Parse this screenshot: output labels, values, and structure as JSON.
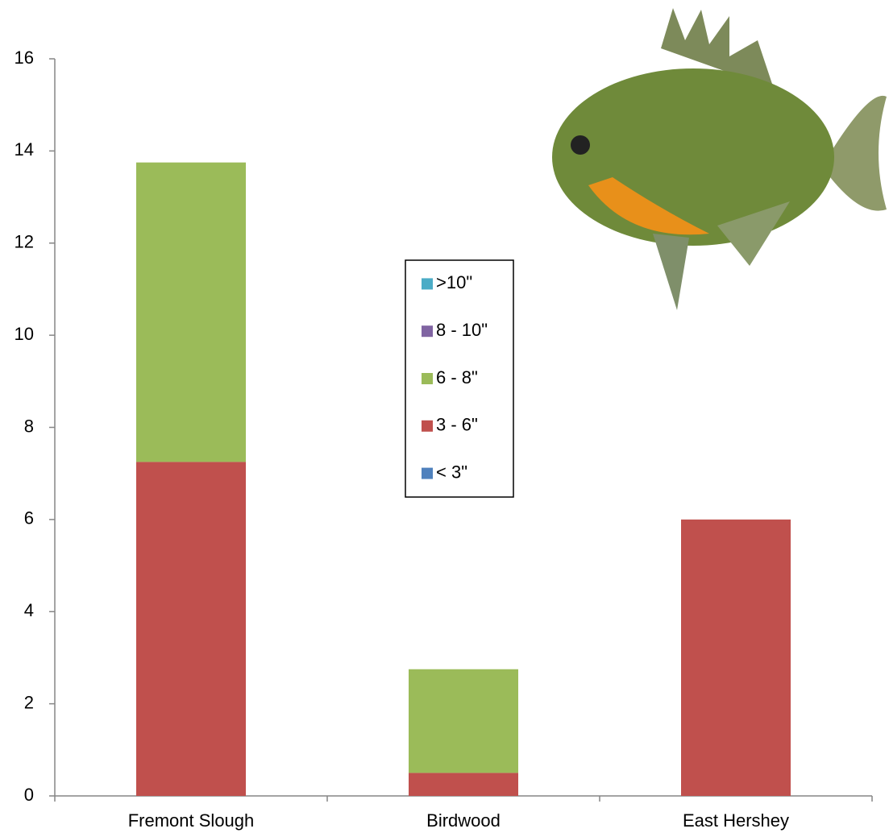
{
  "chart_data": {
    "type": "bar",
    "stacked": true,
    "categories": [
      "Fremont Slough",
      "Birdwood",
      "East Hershey"
    ],
    "series": [
      {
        "name": "< 3\"",
        "color": "#4f81bd",
        "values": [
          0,
          0,
          0
        ]
      },
      {
        "name": "3 - 6\"",
        "color": "#c0504d",
        "values": [
          7.25,
          0.5,
          6
        ]
      },
      {
        "name": "6 - 8\"",
        "color": "#9bbb59",
        "values": [
          6.5,
          2.25,
          0
        ]
      },
      {
        "name": "8 - 10\"",
        "color": "#8064a2",
        "values": [
          0,
          0,
          0
        ]
      },
      {
        "name": ">10\"",
        "color": "#4bacc6",
        "values": [
          0,
          0,
          0
        ]
      }
    ],
    "ylim": [
      0,
      16
    ],
    "yticks": [
      0,
      2,
      4,
      6,
      8,
      10,
      12,
      14,
      16
    ],
    "grid": false,
    "legend": "center"
  }
}
